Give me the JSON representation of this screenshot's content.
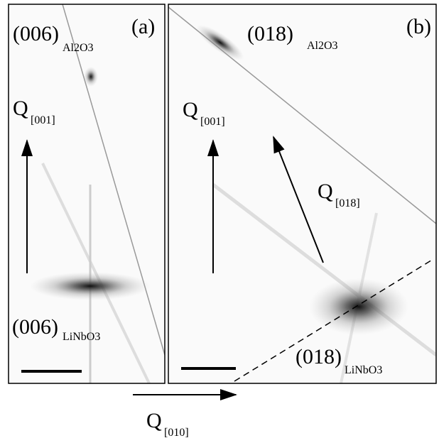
{
  "panel_a": {
    "label": "(a)",
    "top_peak": {
      "index": "(006)",
      "material": "Al2O3"
    },
    "axis": {
      "symbol": "Q",
      "direction": "[001]"
    },
    "bottom_peak": {
      "index": "(006)",
      "material": "LiNbO3"
    }
  },
  "panel_b": {
    "label": "(b)",
    "top_peak": {
      "index": "(018)",
      "material": "Al2O3"
    },
    "axis": {
      "symbol": "Q",
      "direction": "[001]"
    },
    "tilted_axis": {
      "symbol": "Q",
      "direction": "[018]"
    },
    "bottom_peak": {
      "index": "(018)",
      "material": "LiNbO3"
    }
  },
  "horizontal_axis": {
    "symbol": "Q",
    "direction": "[010]"
  }
}
